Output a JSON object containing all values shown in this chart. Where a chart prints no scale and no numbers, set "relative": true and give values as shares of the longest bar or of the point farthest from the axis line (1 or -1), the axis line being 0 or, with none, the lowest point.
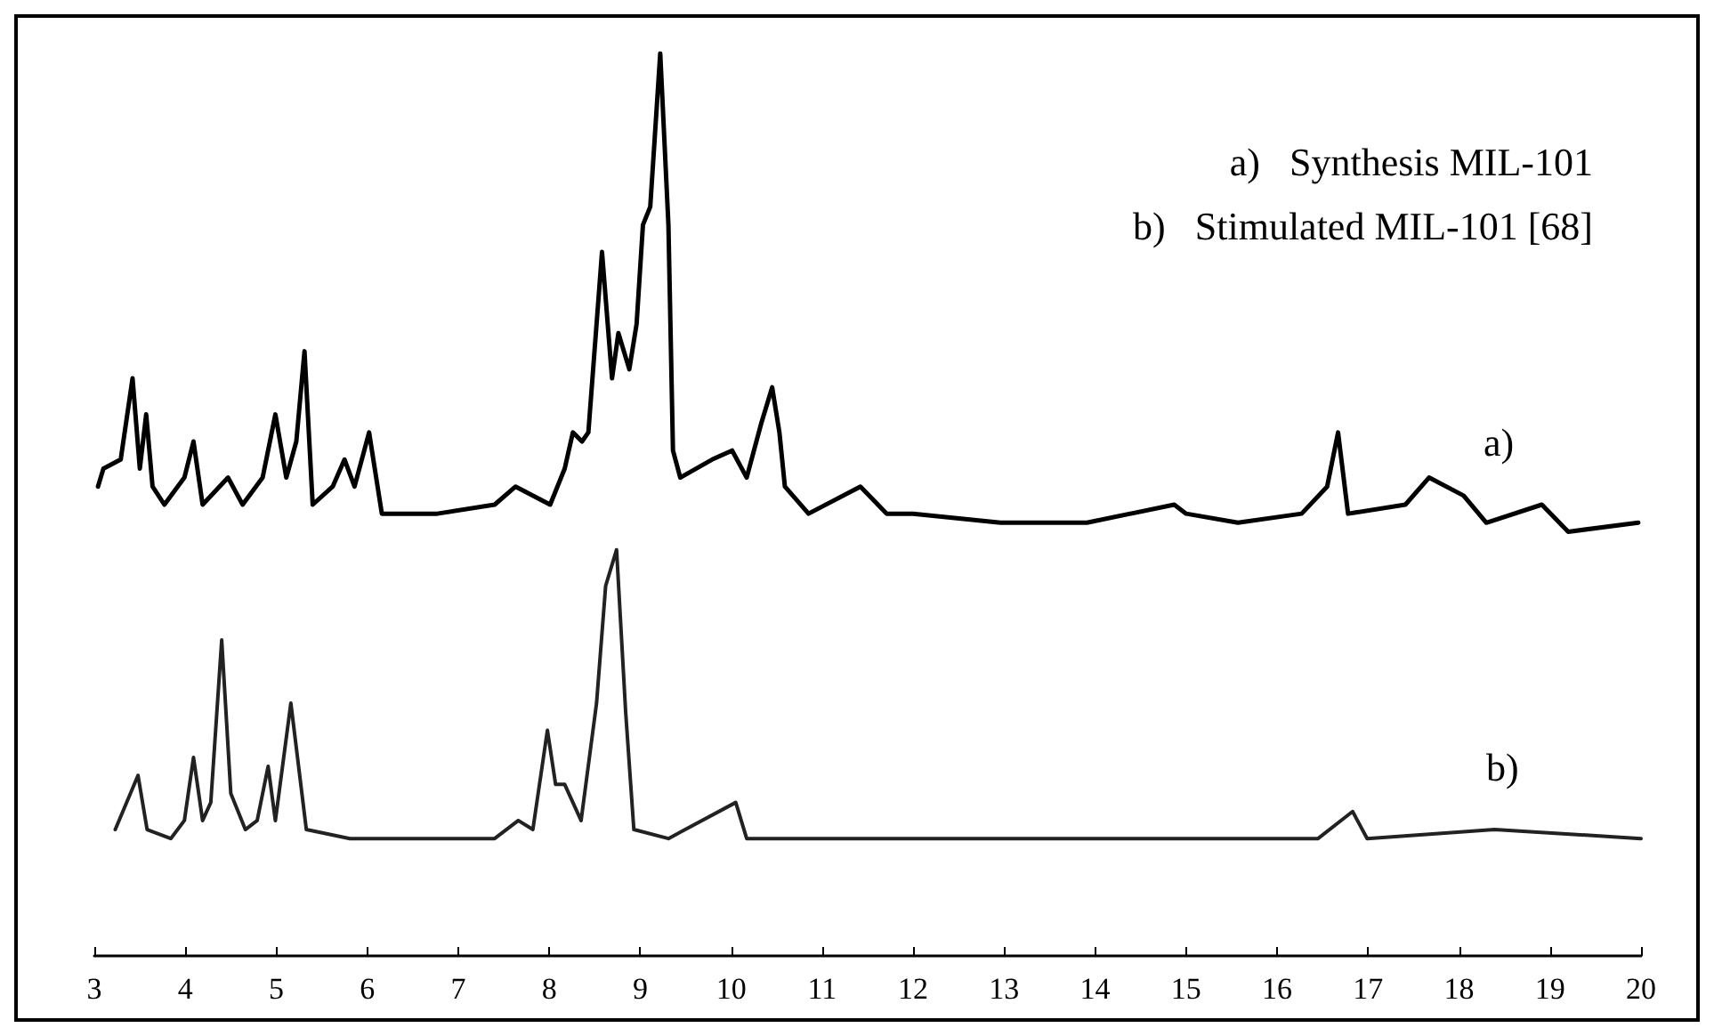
{
  "chart_data": {
    "type": "line",
    "relative": true,
    "xlim": [
      3,
      20
    ],
    "xticks": [
      3,
      4,
      5,
      6,
      7,
      8,
      9,
      10,
      11,
      12,
      13,
      14,
      15,
      16,
      17,
      18,
      19,
      20
    ],
    "grid": false,
    "legend": false,
    "marker": "none",
    "line_style": "solid",
    "annotations": [
      "a)   Synthesis MIL-101",
      "b)   Stimulated MIL-101 [68]"
    ],
    "series": [
      {
        "name": "a)",
        "color": "#000000",
        "x": [
          3.04,
          3.1,
          3.29,
          3.42,
          3.5,
          3.57,
          3.64,
          3.77,
          3.99,
          4.09,
          4.19,
          4.47,
          4.63,
          4.85,
          4.99,
          5.11,
          5.22,
          5.31,
          5.4,
          5.62,
          5.75,
          5.86,
          6.02,
          6.16,
          6.77,
          7.4,
          7.63,
          8.01,
          8.17,
          8.26,
          8.36,
          8.43,
          8.58,
          8.69,
          8.76,
          8.88,
          8.96,
          9.03,
          9.11,
          9.22,
          9.31,
          9.36,
          9.44,
          9.79,
          10.01,
          10.17,
          10.33,
          10.45,
          10.53,
          10.59,
          10.85,
          11.42,
          11.71,
          12.0,
          12.96,
          13.91,
          14.87,
          15.0,
          15.57,
          16.27,
          16.55,
          16.67,
          16.78,
          17.41,
          17.67,
          18.05,
          18.3,
          18.91,
          19.2,
          19.97
        ],
        "values": [
          0.52,
          0.54,
          0.55,
          0.64,
          0.54,
          0.6,
          0.52,
          0.5,
          0.53,
          0.57,
          0.5,
          0.53,
          0.5,
          0.53,
          0.6,
          0.53,
          0.57,
          0.67,
          0.5,
          0.52,
          0.55,
          0.52,
          0.58,
          0.49,
          0.49,
          0.5,
          0.52,
          0.5,
          0.54,
          0.58,
          0.57,
          0.58,
          0.78,
          0.64,
          0.69,
          0.65,
          0.7,
          0.81,
          0.83,
          1,
          0.81,
          0.56,
          0.53,
          0.55,
          0.56,
          0.53,
          0.59,
          0.63,
          0.58,
          0.52,
          0.49,
          0.52,
          0.49,
          0.49,
          0.48,
          0.48,
          0.5,
          0.49,
          0.48,
          0.49,
          0.52,
          0.58,
          0.49,
          0.5,
          0.53,
          0.51,
          0.48,
          0.5,
          0.47,
          0.48
        ]
      },
      {
        "name": "b)",
        "color": "#222222",
        "x": [
          3.23,
          3.48,
          3.58,
          3.84,
          3.99,
          4.09,
          4.19,
          4.28,
          4.4,
          4.5,
          4.66,
          4.79,
          4.91,
          4.99,
          5.16,
          5.33,
          5.81,
          6.45,
          7.4,
          7.66,
          7.82,
          7.98,
          8.07,
          8.17,
          8.35,
          8.52,
          8.62,
          8.74,
          8.84,
          8.93,
          9.31,
          10.05,
          10.17,
          11.67,
          12.63,
          14.54,
          16.45,
          16.83,
          16.99,
          18.39,
          20.0
        ],
        "values": [
          0.14,
          0.2,
          0.14,
          0.13,
          0.15,
          0.22,
          0.15,
          0.17,
          0.35,
          0.18,
          0.14,
          0.15,
          0.21,
          0.15,
          0.28,
          0.14,
          0.13,
          0.13,
          0.13,
          0.15,
          0.14,
          0.25,
          0.19,
          0.19,
          0.15,
          0.28,
          0.41,
          0.45,
          0.27,
          0.14,
          0.13,
          0.17,
          0.13,
          0.13,
          0.13,
          0.13,
          0.13,
          0.16,
          0.13,
          0.14,
          0.13
        ]
      }
    ]
  }
}
